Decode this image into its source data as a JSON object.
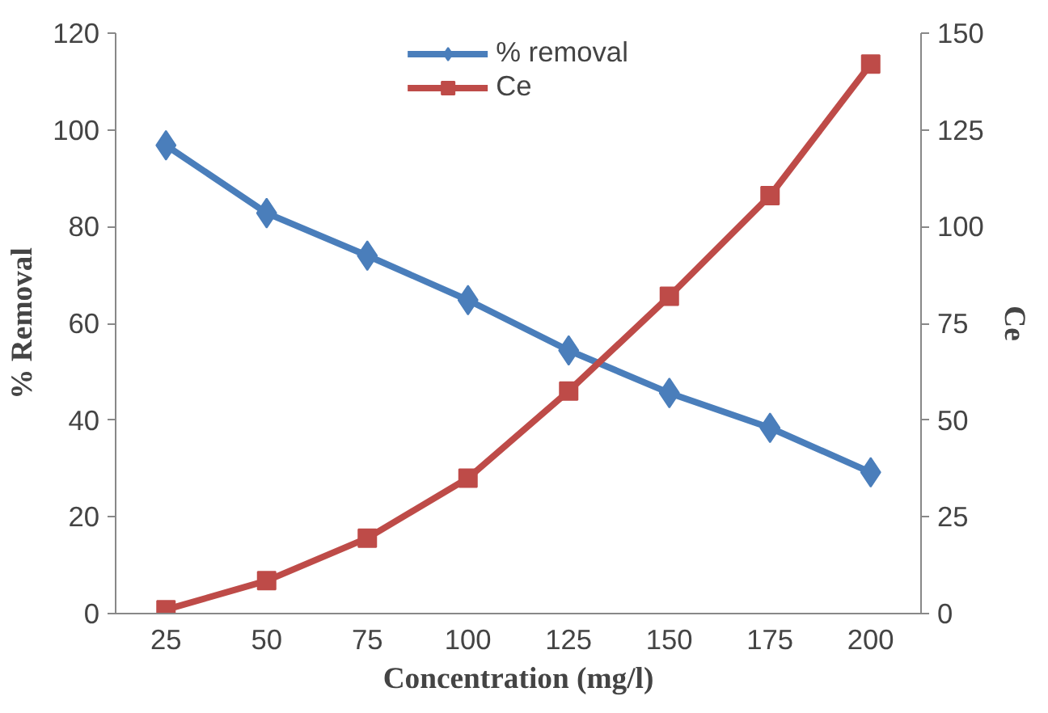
{
  "chart_data": {
    "type": "line",
    "xlabel": "Concentration (mg/l)",
    "ylabel": "% Removal",
    "y2label": "Ce",
    "categories": [
      "25",
      "50",
      "75",
      "100",
      "125",
      "150",
      "175",
      "200"
    ],
    "series": [
      {
        "name": "% removal",
        "color": "#4a7ebb",
        "marker": "diamond",
        "values": [
          96.8,
          82.8,
          74,
          64.8,
          54.4,
          45.6,
          38.4,
          29.2
        ]
      },
      {
        "name": "Ce",
        "color": "#be4b48",
        "marker": "square",
        "axis": "y2",
        "values": [
          1,
          8.5,
          19.5,
          35,
          57.5,
          82,
          108,
          142
        ]
      }
    ],
    "ylim": [
      0,
      120
    ],
    "yticks": [
      0,
      20,
      40,
      60,
      80,
      100,
      120
    ],
    "y2lim": [
      0,
      150
    ],
    "y2ticks": [
      0,
      25,
      50,
      75,
      100,
      125,
      150
    ],
    "grid": false,
    "legend": "top"
  }
}
